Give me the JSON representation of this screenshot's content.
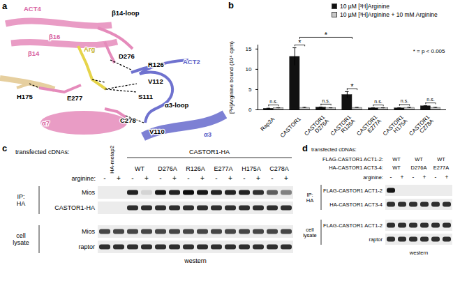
{
  "panel_labels": [
    "a",
    "b",
    "c",
    "d"
  ],
  "structure": {
    "labels": [
      {
        "text": "ACT4",
        "color": "#d8609f"
      },
      {
        "text": "β14",
        "color": "#d8609f"
      },
      {
        "text": "β16",
        "color": "#d8609f"
      },
      {
        "text": "β14-loop",
        "color": "#000000"
      },
      {
        "text": "D276",
        "color": "#000000"
      },
      {
        "text": "R126",
        "color": "#000000"
      },
      {
        "text": "ACT2",
        "color": "#5b5fc7"
      },
      {
        "text": "Arg",
        "color": "#c9b52a"
      },
      {
        "text": "H175",
        "color": "#000000"
      },
      {
        "text": "E277",
        "color": "#000000"
      },
      {
        "text": "S111",
        "color": "#000000"
      },
      {
        "text": "V112",
        "color": "#000000"
      },
      {
        "text": "α7",
        "color": "#d8609f"
      },
      {
        "text": "α3-loop",
        "color": "#000000"
      },
      {
        "text": "C278",
        "color": "#000000"
      },
      {
        "text": "V110",
        "color": "#000000"
      },
      {
        "text": "α3",
        "color": "#5b5fc7"
      }
    ]
  },
  "chart_data": {
    "type": "bar",
    "y_label": "[³H]Arginine bound (10⁴ cpm)",
    "categories": [
      "Rap2A",
      "CASTOR1",
      "CASTOR1 D276A",
      "CASTOR1 R126A",
      "CASTOR1 E277A",
      "CASTOR1 H175A",
      "CASTOR1 C278A"
    ],
    "series": [
      {
        "name": "10 µM [³H]Arginine",
        "color": "#111111",
        "values": [
          0.3,
          13.1,
          0.6,
          3.7,
          0.4,
          0.4,
          0.9
        ],
        "errors": [
          0.1,
          2.2,
          0.1,
          0.8,
          0.1,
          0.1,
          0.1
        ]
      },
      {
        "name": "10 µM [³H]Arginine + 10 mM Arginine",
        "color": "#c8c8c8",
        "values": [
          0.4,
          0.5,
          0.4,
          0.5,
          0.4,
          0.5,
          0.5
        ],
        "errors": [
          0.1,
          0.1,
          0.1,
          0.1,
          0.1,
          0.1,
          0.1
        ]
      }
    ],
    "ylim": [
      0,
      16
    ],
    "yticks": [
      0,
      5,
      10,
      15
    ],
    "annotations": [
      {
        "text": "n.s.",
        "category": "Rap2A"
      },
      {
        "text": "*",
        "category": "CASTOR1"
      },
      {
        "text": "n.s.",
        "category": "CASTOR1 D276A"
      },
      {
        "text": "*",
        "category": "CASTOR1 R126A"
      },
      {
        "text": "n.s.",
        "category": "CASTOR1 E277A"
      },
      {
        "text": "n.s.",
        "category": "CASTOR1 H175A"
      },
      {
        "text": "n.s.",
        "category": "CASTOR1 C278A"
      },
      {
        "text": "*",
        "from": "CASTOR1",
        "to": "CASTOR1 R126A"
      }
    ],
    "note": "* = p < 0.005"
  },
  "blot_c": {
    "header_label": "transfected cDNAs:",
    "groups": [
      {
        "name": "HA-metap2"
      },
      {
        "name": "CASTOR1-HA",
        "variants": [
          "WT",
          "D276A",
          "R126A",
          "E277A",
          "H175A",
          "C278A"
        ]
      }
    ],
    "arginine": {
      "label": "arginine:",
      "lanes": [
        "-",
        "+",
        "-",
        "+",
        "-",
        "+",
        "-",
        "+",
        "-",
        "+",
        "-",
        "+",
        "-",
        "+"
      ]
    },
    "rows": [
      {
        "section": "IP: HA",
        "label": "Mios",
        "bands": [
          0,
          0,
          0.85,
          0.1,
          0.9,
          0.85,
          0.95,
          0.9,
          0.85,
          0.85,
          0.85,
          0.8,
          0.6,
          0.45
        ]
      },
      {
        "section": "IP: HA",
        "label": "CASTOR1-HA",
        "bands": [
          0,
          0,
          0.8,
          0.8,
          0.8,
          0.8,
          0.8,
          0.8,
          0.8,
          0.8,
          0.8,
          0.8,
          0.8,
          0.8
        ]
      },
      {
        "section": "cell lysate",
        "label": "Mios",
        "bands": [
          0.7,
          0.7,
          0.7,
          0.7,
          0.7,
          0.7,
          0.7,
          0.7,
          0.7,
          0.7,
          0.7,
          0.7,
          0.7,
          0.7
        ]
      },
      {
        "section": "cell lysate",
        "label": "raptor",
        "bands": [
          0.8,
          0.8,
          0.8,
          0.8,
          0.8,
          0.8,
          0.8,
          0.8,
          0.8,
          0.8,
          0.8,
          0.8,
          0.8,
          0.8
        ]
      }
    ],
    "footer": "western"
  },
  "blot_d": {
    "header_label": "transfected cDNAs:",
    "header_rows": [
      {
        "label": "FLAG-CASTOR1 ACT1-2:",
        "variants": [
          "WT",
          "WT",
          "WT"
        ]
      },
      {
        "label": "HA-CASTOR1 ACT3-4:",
        "variants": [
          "WT",
          "D276A",
          "E277A"
        ]
      }
    ],
    "arginine": {
      "label": "arginine:",
      "lanes": [
        "-",
        "+",
        "-",
        "+",
        "-",
        "+"
      ]
    },
    "rows": [
      {
        "section": "IP: HA",
        "label": "FLAG-CASTOR1 ACT1-2",
        "bands": [
          0.9,
          0,
          0,
          0,
          0,
          0
        ]
      },
      {
        "section": "IP: HA",
        "label": "HA-CASTOR1 ACT3-4",
        "bands": [
          0.8,
          0.8,
          0.8,
          0.8,
          0.8,
          0.8
        ]
      },
      {
        "section": "cell lysate",
        "label": "FLAG-CASTOR1 ACT1-2",
        "bands": [
          0.8,
          0.8,
          0.8,
          0.8,
          0.8,
          0.8
        ]
      },
      {
        "section": "cell lysate",
        "label": "raptor",
        "bands": [
          0.8,
          0.8,
          0.8,
          0.8,
          0.8,
          0.8
        ]
      }
    ],
    "footer": "western"
  }
}
